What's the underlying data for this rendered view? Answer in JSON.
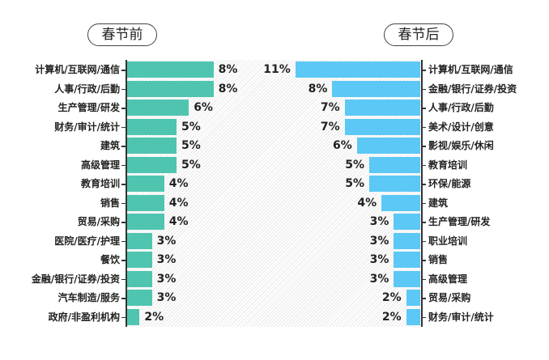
{
  "chart_data": [
    {
      "type": "bar",
      "orientation": "horizontal",
      "title": "春节前",
      "color": "#4fc5b0",
      "categories": [
        "计算机/互联网/通信",
        "人事/行政/后勤",
        "生产管理/研发",
        "财务/审计/统计",
        "建筑",
        "高级管理",
        "教育培训",
        "销售",
        "贸易/采购",
        "医院/医疗/护理",
        "餐饮",
        "金融/银行/证券/投资",
        "汽车制造/服务",
        "政府/非盈利机构"
      ],
      "values": [
        8,
        8,
        6,
        5,
        5,
        5,
        4,
        4,
        4,
        3,
        3,
        3,
        3,
        2
      ],
      "labels": [
        "8%",
        "8%",
        "6%",
        "5%",
        "5%",
        "5%",
        "4%",
        "4%",
        "4%",
        "3%",
        "3%",
        "3%",
        "3%",
        "2%"
      ],
      "unit": "%"
    },
    {
      "type": "bar",
      "orientation": "horizontal",
      "title": "春节后",
      "color": "#5bc8f5",
      "categories": [
        "计算机/互联网/通信",
        "金融/银行/证券/投资",
        "人事/行政/后勤",
        "美术/设计/创意",
        "影视/娱乐/休闲",
        "教育培训",
        "环保/能源",
        "建筑",
        "生产管理/研发",
        "职业培训",
        "销售",
        "高级管理",
        "贸易/采购",
        "财务/审计/统计"
      ],
      "values": [
        11,
        8,
        7,
        7,
        6,
        5,
        5,
        4,
        3,
        3,
        3,
        3,
        2,
        2
      ],
      "labels": [
        "11%",
        "8%",
        "7%",
        "7%",
        "6%",
        "5%",
        "5%",
        "4%",
        "3%",
        "3%",
        "3%",
        "3%",
        "2%",
        "2%"
      ],
      "unit": "%"
    }
  ],
  "left": {
    "title": "春节前"
  },
  "right": {
    "title": "春节后"
  }
}
